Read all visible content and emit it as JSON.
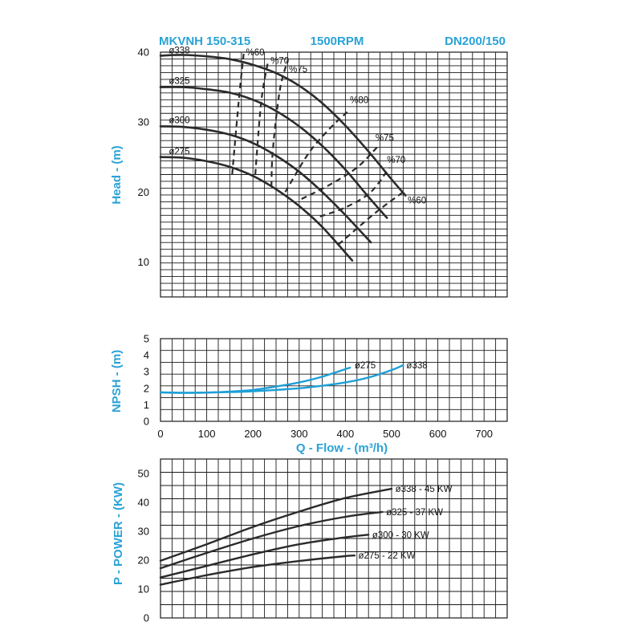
{
  "header": {
    "model": "MKVNH 150-315",
    "speed": "1500RPM",
    "flange": "DN200/150"
  },
  "colors": {
    "accent": "#2aa2d6",
    "npsh_curve": "#1e9fd6",
    "curves": "#2b2b2b",
    "grid": "#1a1a1a"
  },
  "chart_data": [
    {
      "type": "line",
      "id": "head",
      "ylabel": "Head - (m)",
      "ylim": [
        5,
        40
      ],
      "yticks": [
        10,
        20,
        30,
        40
      ],
      "xlim": [
        0,
        750
      ],
      "grid": true,
      "series": [
        {
          "name": "ø338",
          "x": [
            0,
            50,
            100,
            150,
            200,
            250,
            300,
            350,
            400,
            450,
            500,
            530
          ],
          "y": [
            39.5,
            39.6,
            39.4,
            39.0,
            38.2,
            37.0,
            35.2,
            32.7,
            29.5,
            25.8,
            21.8,
            19.5
          ]
        },
        {
          "name": "ø325",
          "x": [
            0,
            50,
            100,
            150,
            200,
            250,
            300,
            350,
            400,
            450,
            490
          ],
          "y": [
            35.0,
            35.0,
            34.7,
            34.2,
            33.2,
            31.6,
            29.4,
            26.6,
            23.2,
            19.3,
            16.3
          ]
        },
        {
          "name": "ø300",
          "x": [
            0,
            50,
            100,
            150,
            200,
            250,
            300,
            350,
            400,
            455
          ],
          "y": [
            29.4,
            29.3,
            28.9,
            28.2,
            27.0,
            25.2,
            22.9,
            20.0,
            16.7,
            12.8
          ]
        },
        {
          "name": "ø275",
          "x": [
            0,
            50,
            100,
            150,
            200,
            250,
            300,
            350,
            415
          ],
          "y": [
            25.0,
            24.9,
            24.4,
            23.6,
            22.3,
            20.4,
            18.0,
            15.0,
            10.2
          ]
        }
      ],
      "efficiency": [
        {
          "name": "%60",
          "x": [
            155,
            170,
            180
          ],
          "y": [
            22.5,
            33.5,
            39.8
          ]
        },
        {
          "name": "%70",
          "x": [
            205,
            218,
            233
          ],
          "y": [
            22.5,
            33.0,
            38.8
          ]
        },
        {
          "name": "%75",
          "x": [
            240,
            243,
            258,
            275
          ],
          "y": [
            20.8,
            26.0,
            34.5,
            38.8
          ]
        },
        {
          "name": "%80",
          "x": [
            270,
            320,
            365,
            405
          ],
          "y": [
            20.0,
            25.5,
            29.0,
            31.5
          ]
        },
        {
          "name": "%75",
          "x": [
            305,
            365,
            425,
            470
          ],
          "y": [
            19.0,
            21.0,
            23.5,
            26.5
          ]
        },
        {
          "name": "%70",
          "x": [
            345,
            400,
            455,
            495
          ],
          "y": [
            16.5,
            17.8,
            20.0,
            23.5
          ]
        },
        {
          "name": "%60",
          "x": [
            385,
            420,
            470,
            525
          ],
          "y": [
            12.5,
            14.5,
            17.3,
            20.0
          ]
        }
      ],
      "labels": [
        {
          "text": "ø338",
          "x": 18,
          "y": 40.3
        },
        {
          "text": "ø325",
          "x": 18,
          "y": 35.9
        },
        {
          "text": "ø300",
          "x": 18,
          "y": 30.3
        },
        {
          "text": "ø275",
          "x": 18,
          "y": 25.8
        },
        {
          "text": "%60",
          "x": 185,
          "y": 40.0
        },
        {
          "text": "%70",
          "x": 238,
          "y": 38.8
        },
        {
          "text": "%75",
          "x": 278,
          "y": 37.6
        },
        {
          "text": "%80",
          "x": 410,
          "y": 33.2
        },
        {
          "text": "%75",
          "x": 465,
          "y": 27.8
        },
        {
          "text": "%70",
          "x": 490,
          "y": 24.6
        },
        {
          "text": "%60",
          "x": 535,
          "y": 18.8
        }
      ]
    },
    {
      "type": "line",
      "id": "npsh",
      "ylabel": "NPSH - (m)",
      "ylim": [
        0,
        5
      ],
      "yticks": [
        0,
        1,
        2,
        3,
        4,
        5
      ],
      "xlabel": "Q - Flow - (m³/h)",
      "xticks": [
        0,
        100,
        200,
        300,
        400,
        500,
        600,
        700
      ],
      "xlim": [
        0,
        750
      ],
      "grid": true,
      "series": [
        {
          "name": "ø275",
          "x": [
            0,
            50,
            100,
            150,
            200,
            250,
            300,
            350,
            410
          ],
          "y": [
            1.75,
            1.72,
            1.74,
            1.8,
            1.9,
            2.1,
            2.35,
            2.7,
            3.25
          ]
        },
        {
          "name": "ø338",
          "x": [
            0,
            50,
            100,
            150,
            200,
            250,
            300,
            350,
            400,
            450,
            500,
            525
          ],
          "y": [
            1.75,
            1.73,
            1.74,
            1.77,
            1.82,
            1.9,
            2.0,
            2.15,
            2.35,
            2.65,
            3.1,
            3.4
          ]
        }
      ],
      "labels": [
        {
          "text": "ø275",
          "x": 420,
          "y": 3.4
        },
        {
          "text": "ø338",
          "x": 532,
          "y": 3.4
        }
      ]
    },
    {
      "type": "line",
      "id": "power",
      "ylabel": "P - POWER - (KW)",
      "ylim": [
        0,
        55
      ],
      "yticks": [
        0,
        10,
        20,
        30,
        40,
        50
      ],
      "xlim": [
        0,
        750
      ],
      "grid": true,
      "series": [
        {
          "name": "ø338 - 45 KW",
          "x": [
            0,
            100,
            200,
            300,
            400,
            500
          ],
          "y": [
            19.8,
            25.5,
            31.5,
            36.8,
            41.5,
            44.7
          ]
        },
        {
          "name": "ø325 - 37 KW",
          "x": [
            0,
            100,
            200,
            300,
            400,
            480
          ],
          "y": [
            17.2,
            22.5,
            27.5,
            31.8,
            35.0,
            36.7
          ]
        },
        {
          "name": "ø300 - 30 KW",
          "x": [
            0,
            100,
            200,
            300,
            400,
            450
          ],
          "y": [
            14.0,
            18.0,
            22.0,
            25.5,
            27.9,
            28.8
          ]
        },
        {
          "name": "ø275 - 22 KW",
          "x": [
            0,
            100,
            200,
            300,
            400,
            420
          ],
          "y": [
            11.5,
            14.8,
            17.6,
            19.7,
            21.4,
            21.6
          ]
        }
      ],
      "labels": [
        {
          "text": "ø338 - 45 KW",
          "x": 508,
          "y": 44.7
        },
        {
          "text": "ø325 - 37 KW",
          "x": 488,
          "y": 36.7
        },
        {
          "text": "ø300 - 30 KW",
          "x": 458,
          "y": 28.8
        },
        {
          "text": "ø275 - 22 KW",
          "x": 428,
          "y": 21.6
        }
      ]
    }
  ]
}
